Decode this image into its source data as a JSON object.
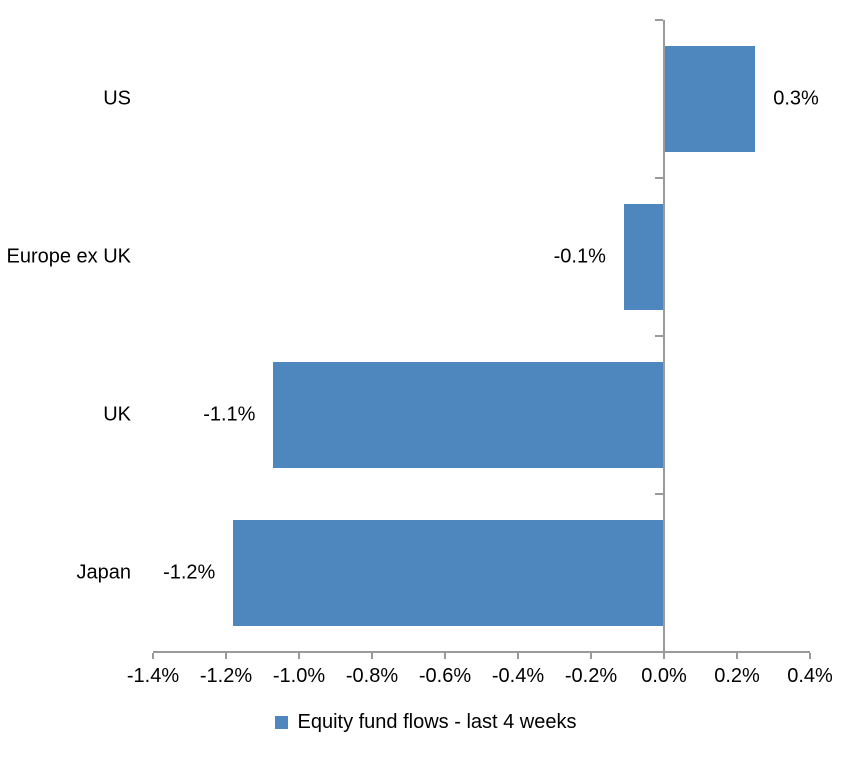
{
  "chart_data": {
    "type": "bar",
    "orientation": "horizontal",
    "title": "",
    "xlabel": "",
    "ylabel": "",
    "categories": [
      "US",
      "Europe ex UK",
      "UK",
      "Japan"
    ],
    "series": [
      {
        "name": "Equity fund flows - last 4 weeks",
        "values": [
          0.25,
          -0.11,
          -1.07,
          -1.18
        ],
        "data_labels": [
          "0.3%",
          "-0.1%",
          "-1.1%",
          "-1.2%"
        ]
      }
    ],
    "xlim": [
      -1.4,
      0.4
    ],
    "x_tick_values": [
      -1.4,
      -1.2,
      -1.0,
      -0.8,
      -0.6,
      -0.4,
      -0.2,
      0.0,
      0.2,
      0.4
    ],
    "x_tick_labels": [
      "-1.4%",
      "-1.2%",
      "-1.0%",
      "-0.8%",
      "-0.6%",
      "-0.4%",
      "-0.2%",
      "0.0%",
      "0.2%",
      "0.4%"
    ],
    "grid": false,
    "legend_position": "bottom",
    "colors": {
      "bar": "#4E87BD",
      "axis": "#9A9A9A",
      "text": "#000000",
      "background": "#FFFFFF"
    }
  },
  "legend": {
    "label": "Equity fund flows - last 4 weeks"
  }
}
